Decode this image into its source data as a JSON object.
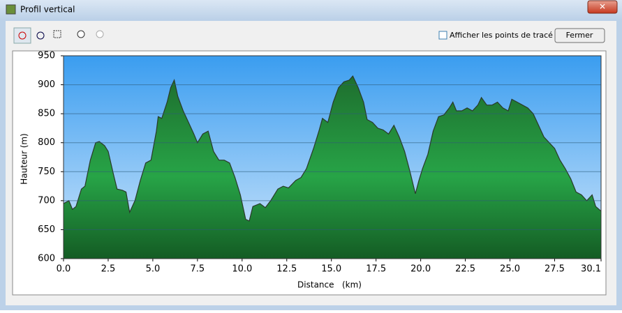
{
  "window": {
    "title": "Profil vertical",
    "checkbox_label": "Afficher les points de tracé",
    "button": "Fermer"
  },
  "chart_data": {
    "type": "area",
    "xlabel": "Distance   (km)",
    "ylabel": "Hauteur (m)",
    "x": [
      0,
      0.3,
      0.5,
      0.7,
      1.0,
      1.2,
      1.5,
      1.8,
      2.0,
      2.3,
      2.5,
      2.8,
      3.0,
      3.3,
      3.5,
      3.7,
      4.0,
      4.3,
      4.6,
      4.9,
      5.2,
      5.3,
      5.5,
      5.8,
      6.0,
      6.2,
      6.4,
      6.7,
      7.0,
      7.3,
      7.5,
      7.8,
      8.1,
      8.4,
      8.7,
      9.0,
      9.3,
      9.6,
      9.9,
      10.2,
      10.4,
      10.6,
      11.0,
      11.3,
      11.6,
      12.0,
      12.3,
      12.6,
      13.0,
      13.3,
      13.6,
      14.0,
      14.3,
      14.5,
      14.8,
      15.1,
      15.4,
      15.7,
      16.0,
      16.2,
      16.5,
      16.8,
      17.0,
      17.3,
      17.6,
      17.9,
      18.2,
      18.5,
      18.8,
      19.1,
      19.4,
      19.7,
      19.9,
      20.1,
      20.4,
      20.7,
      21.0,
      21.3,
      21.6,
      21.8,
      22.0,
      22.3,
      22.6,
      22.9,
      23.2,
      23.4,
      23.7,
      24.0,
      24.3,
      24.6,
      24.9,
      25.1,
      25.4,
      25.7,
      26.0,
      26.3,
      26.6,
      26.9,
      27.2,
      27.5,
      27.8,
      28.1,
      28.4,
      28.7,
      29.0,
      29.3,
      29.6,
      29.8,
      30.1
    ],
    "values": [
      695,
      700,
      685,
      690,
      720,
      725,
      770,
      800,
      802,
      795,
      785,
      745,
      720,
      718,
      715,
      680,
      700,
      735,
      765,
      770,
      820,
      845,
      842,
      870,
      895,
      908,
      880,
      855,
      835,
      815,
      800,
      815,
      820,
      785,
      770,
      770,
      765,
      740,
      710,
      668,
      665,
      690,
      695,
      688,
      700,
      720,
      725,
      722,
      735,
      740,
      755,
      790,
      820,
      842,
      835,
      870,
      895,
      905,
      908,
      915,
      895,
      870,
      840,
      835,
      825,
      822,
      815,
      830,
      810,
      785,
      750,
      712,
      735,
      755,
      780,
      820,
      845,
      848,
      860,
      870,
      855,
      855,
      860,
      855,
      865,
      878,
      865,
      865,
      870,
      860,
      855,
      875,
      870,
      865,
      860,
      850,
      830,
      810,
      800,
      790,
      770,
      755,
      738,
      715,
      710,
      700,
      710,
      690,
      682
    ],
    "xlim": [
      0,
      30.1
    ],
    "ylim": [
      600,
      950
    ],
    "xticks": [
      {
        "value": 0,
        "label": "0.0"
      },
      2.5,
      {
        "value": 5,
        "label": "5.0"
      },
      7.5,
      {
        "value": 10,
        "label": "10.0"
      },
      12.5,
      {
        "value": 15,
        "label": "15.0"
      },
      17.5,
      {
        "value": 20,
        "label": "20.0"
      },
      22.5,
      {
        "value": 25,
        "label": "25.0"
      },
      27.5,
      30.1
    ],
    "yticks": [
      600,
      650,
      700,
      750,
      800,
      850,
      900,
      950
    ],
    "grid": true
  }
}
